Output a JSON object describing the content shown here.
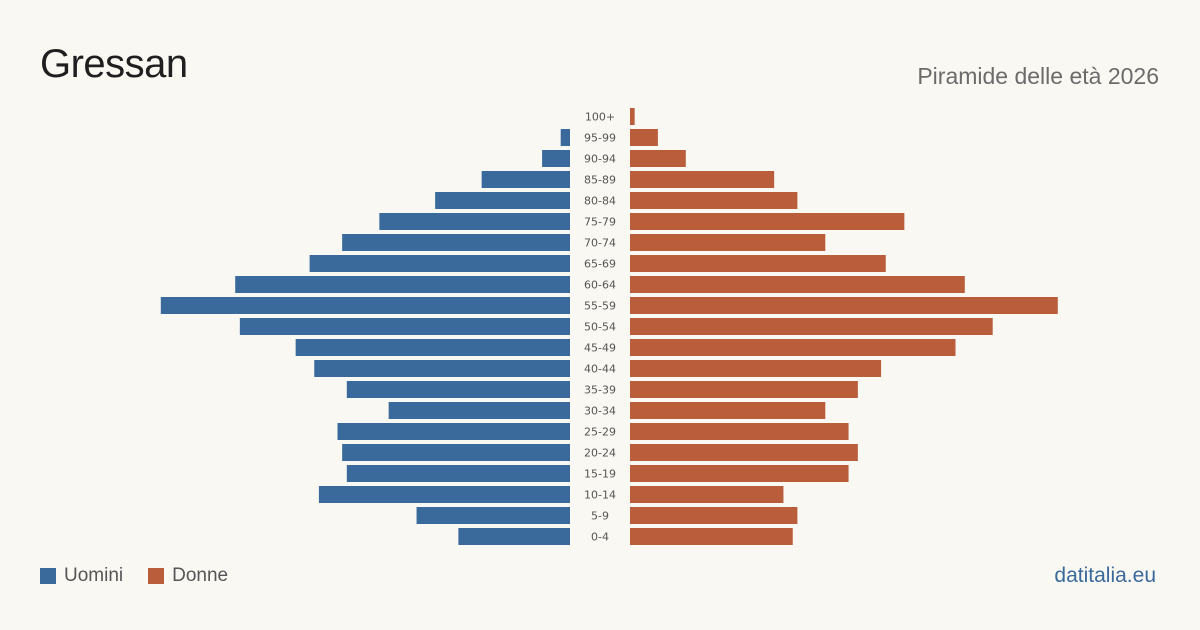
{
  "title": "Gressan",
  "subtitle": "Piramide delle età 2026",
  "site": "datitalia.eu",
  "colors": {
    "men": "#3a6a9b",
    "women": "#b95d3b"
  },
  "chart_data": {
    "type": "bar",
    "orientation": "horizontal-pyramid",
    "title": "Gressan",
    "subtitle": "Piramide delle età 2026",
    "categories": [
      "100+",
      "95-99",
      "90-94",
      "85-89",
      "80-84",
      "75-79",
      "70-74",
      "65-69",
      "60-64",
      "55-59",
      "50-54",
      "45-49",
      "40-44",
      "35-39",
      "30-34",
      "25-29",
      "20-24",
      "15-19",
      "10-14",
      "5-9",
      "0-4"
    ],
    "series": [
      {
        "name": "Uomini",
        "color": "#3a6a9b",
        "values": [
          0,
          2,
          6,
          19,
          29,
          41,
          49,
          56,
          72,
          88,
          71,
          59,
          55,
          48,
          39,
          50,
          49,
          48,
          54,
          33,
          24
        ]
      },
      {
        "name": "Donne",
        "color": "#b95d3b",
        "values": [
          1,
          6,
          12,
          31,
          36,
          59,
          42,
          55,
          72,
          92,
          78,
          70,
          54,
          49,
          42,
          47,
          49,
          47,
          33,
          36,
          35
        ]
      }
    ],
    "legend": "bottom-left"
  }
}
